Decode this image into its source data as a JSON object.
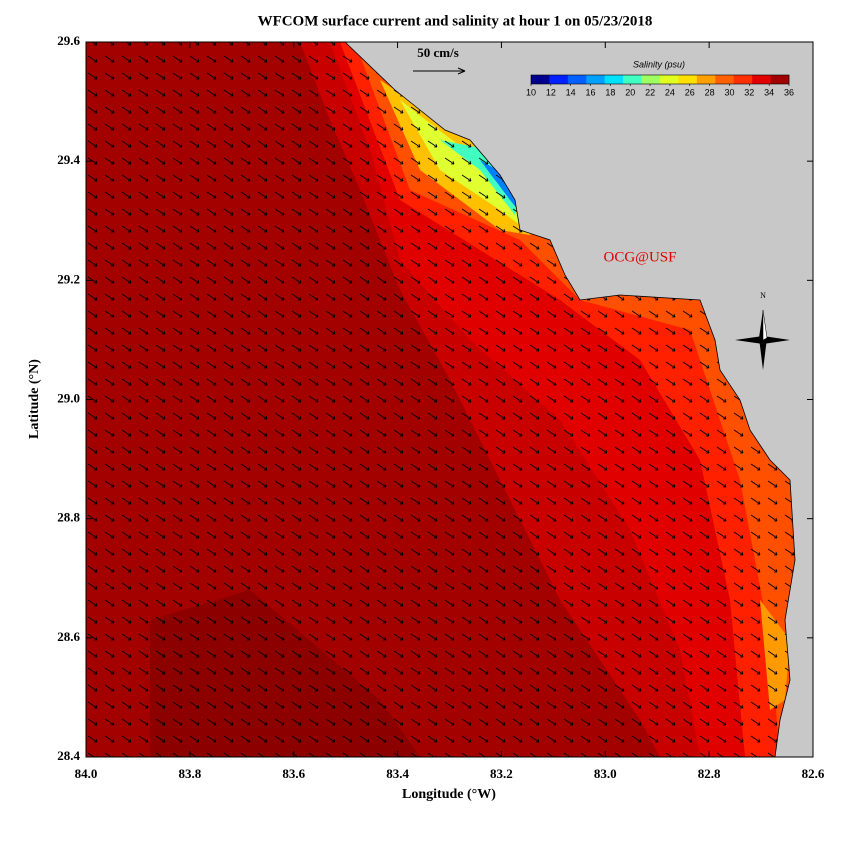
{
  "map": {
    "title": "WFCOM surface current and salinity at hour 1 on 05/23/2018",
    "xlabel": "Longitude (°W)",
    "ylabel": "Latitude (°N)",
    "xlim": [
      84.0,
      82.6
    ],
    "ylim": [
      28.4,
      29.6
    ],
    "xticks": [
      {
        "value": 84.0,
        "label": "84.0"
      },
      {
        "value": 83.8,
        "label": "83.8"
      },
      {
        "value": 83.6,
        "label": "83.6"
      },
      {
        "value": 83.4,
        "label": "83.4"
      },
      {
        "value": 83.2,
        "label": "83.2"
      },
      {
        "value": 83.0,
        "label": "83.0"
      },
      {
        "value": 82.8,
        "label": "82.8"
      },
      {
        "value": 82.6,
        "label": "82.6"
      }
    ],
    "yticks": [
      {
        "value": 28.4,
        "label": "28.4"
      },
      28.6,
      28.8,
      {
        "value": 29.0,
        "label": "29.0"
      },
      29.2,
      29.4,
      29.6
    ],
    "colorbar": {
      "label": "Salinity (psu)",
      "lim": [
        10,
        36
      ],
      "ticks": [
        10,
        12,
        14,
        16,
        18,
        20,
        22,
        24,
        26,
        28,
        30,
        32,
        34,
        36
      ],
      "colors": [
        "#00008f",
        "#0020ff",
        "#0060ff",
        "#00a0ff",
        "#00e0ff",
        "#40ffc0",
        "#a0ff60",
        "#e0ff20",
        "#ffe000",
        "#ffa000",
        "#ff6000",
        "#ff3000",
        "#e00000",
        "#a00000"
      ]
    },
    "scale_label": "50 cm/s",
    "credit": "OCG@USF",
    "north_label": "N"
  }
}
